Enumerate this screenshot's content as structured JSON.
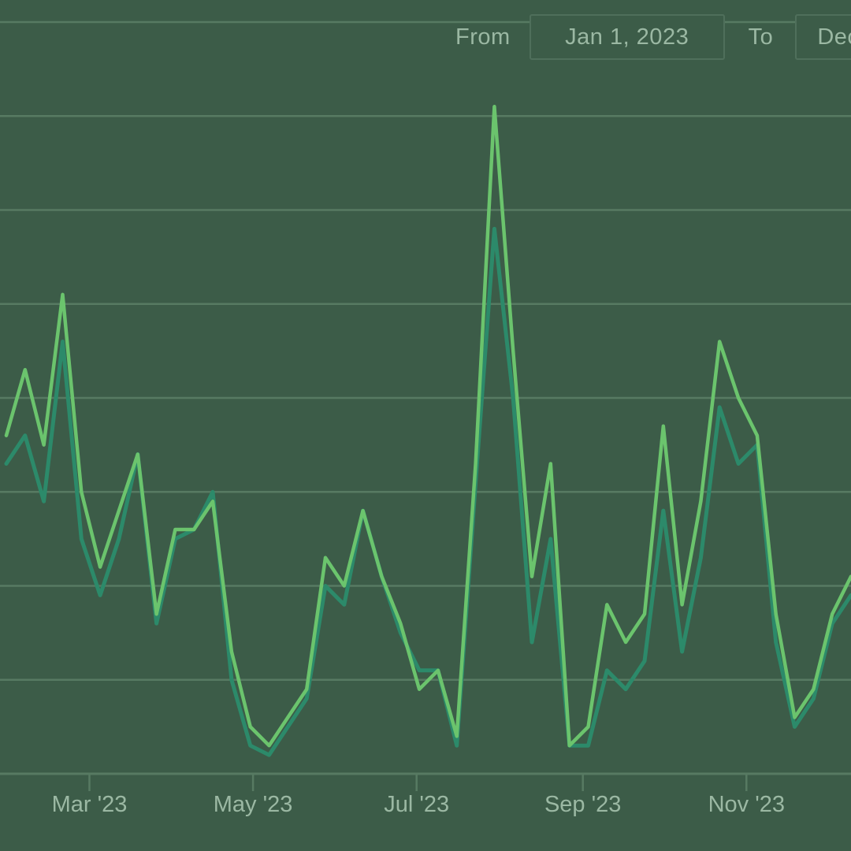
{
  "range_selector": {
    "from_label": "From",
    "from_value": "Jan 1, 2023",
    "to_label": "To",
    "to_value": "Dec"
  },
  "colors": {
    "background": "#3c5c48",
    "grid": "#577a62",
    "axis_text": "#9bb8a3",
    "series_light": "#6bc46d",
    "series_dark": "#2c8a6a"
  },
  "chart_data": {
    "type": "line",
    "x_start": "2023-01-29",
    "x_end": "2023-12-10",
    "x_tick_labels": [
      "Mar '23",
      "May '23",
      "Jul '23",
      "Sep '23",
      "Nov '23"
    ],
    "x_tick_dates": [
      "2023-03-01",
      "2023-05-01",
      "2023-07-01",
      "2023-09-01",
      "2023-11-01"
    ],
    "ylim": [
      0,
      8
    ],
    "y_gridlines": [
      0,
      1,
      2,
      3,
      4,
      5,
      6,
      7,
      8
    ],
    "grid": true,
    "legend": false,
    "x": [
      "2023-01-29",
      "2023-02-05",
      "2023-02-12",
      "2023-02-19",
      "2023-02-26",
      "2023-03-05",
      "2023-03-12",
      "2023-03-19",
      "2023-03-26",
      "2023-04-02",
      "2023-04-09",
      "2023-04-16",
      "2023-04-23",
      "2023-04-30",
      "2023-05-07",
      "2023-05-14",
      "2023-05-21",
      "2023-05-28",
      "2023-06-04",
      "2023-06-11",
      "2023-06-18",
      "2023-06-25",
      "2023-07-02",
      "2023-07-09",
      "2023-07-16",
      "2023-07-23",
      "2023-07-30",
      "2023-08-06",
      "2023-08-13",
      "2023-08-20",
      "2023-08-27",
      "2023-09-03",
      "2023-09-10",
      "2023-09-17",
      "2023-09-24",
      "2023-10-01",
      "2023-10-08",
      "2023-10-15",
      "2023-10-22",
      "2023-10-29",
      "2023-11-05",
      "2023-11-12",
      "2023-11-19",
      "2023-11-26",
      "2023-12-03",
      "2023-12-10"
    ],
    "series": [
      {
        "color": "#2c8a6a",
        "values": [
          3.3,
          3.6,
          2.9,
          4.6,
          2.5,
          1.9,
          2.5,
          3.4,
          1.6,
          2.5,
          2.6,
          3.0,
          1.0,
          0.3,
          0.2,
          0.5,
          0.8,
          2.0,
          1.8,
          2.8,
          2.1,
          1.5,
          1.1,
          1.1,
          0.3,
          3.1,
          5.8,
          4.0,
          1.4,
          2.5,
          0.3,
          0.3,
          1.1,
          0.9,
          1.2,
          2.8,
          1.3,
          2.3,
          3.9,
          3.3,
          3.5,
          1.4,
          0.5,
          0.8,
          1.6,
          1.9
        ]
      },
      {
        "color": "#6bc46d",
        "values": [
          3.6,
          4.3,
          3.5,
          5.1,
          3.0,
          2.2,
          2.8,
          3.4,
          1.7,
          2.6,
          2.6,
          2.9,
          1.3,
          0.5,
          0.3,
          0.6,
          0.9,
          2.3,
          2.0,
          2.8,
          2.1,
          1.6,
          0.9,
          1.1,
          0.4,
          3.3,
          7.1,
          4.5,
          2.1,
          3.3,
          0.3,
          0.5,
          1.8,
          1.4,
          1.7,
          3.7,
          1.8,
          2.9,
          4.6,
          4.0,
          3.6,
          1.7,
          0.6,
          0.9,
          1.7,
          2.1
        ]
      }
    ]
  }
}
